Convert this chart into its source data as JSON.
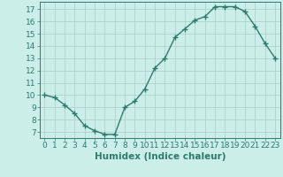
{
  "x": [
    0,
    1,
    2,
    3,
    4,
    5,
    6,
    7,
    8,
    9,
    10,
    11,
    12,
    13,
    14,
    15,
    16,
    17,
    18,
    19,
    20,
    21,
    22,
    23
  ],
  "y": [
    10.0,
    9.8,
    9.2,
    8.5,
    7.5,
    7.1,
    6.8,
    6.8,
    9.0,
    9.5,
    10.5,
    12.2,
    13.0,
    14.7,
    15.4,
    16.1,
    16.4,
    17.2,
    17.2,
    17.2,
    16.8,
    15.6,
    14.2,
    13.0
  ],
  "line_color": "#2d7a6e",
  "marker": "+",
  "marker_size": 4,
  "bg_color": "#cceee8",
  "grid_color": "#aaccc6",
  "xlabel": "Humidex (Indice chaleur)",
  "xlim": [
    -0.5,
    23.5
  ],
  "ylim": [
    6.5,
    17.6
  ],
  "yticks": [
    7,
    8,
    9,
    10,
    11,
    12,
    13,
    14,
    15,
    16,
    17
  ],
  "xticks": [
    0,
    1,
    2,
    3,
    4,
    5,
    6,
    7,
    8,
    9,
    10,
    11,
    12,
    13,
    14,
    15,
    16,
    17,
    18,
    19,
    20,
    21,
    22,
    23
  ],
  "xtick_labels": [
    "0",
    "1",
    "2",
    "3",
    "4",
    "5",
    "6",
    "7",
    "8",
    "9",
    "10",
    "11",
    "12",
    "13",
    "14",
    "15",
    "16",
    "17",
    "18",
    "19",
    "20",
    "21",
    "22",
    "23"
  ],
  "tick_color": "#2d7a6e",
  "label_fontsize": 7.5,
  "tick_fontsize": 6.5,
  "spine_color": "#2d7a6e",
  "line_width": 1.0,
  "grid_linewidth": 0.5
}
